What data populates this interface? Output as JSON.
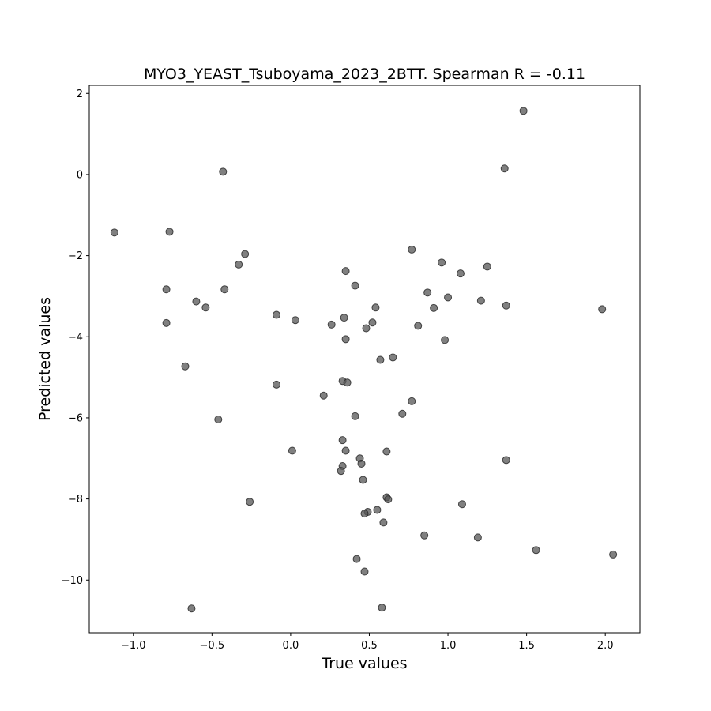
{
  "chart_data": {
    "type": "scatter",
    "title": "MYO3_YEAST_Tsuboyama_2023_2BTT. Spearman R = -0.11",
    "xlabel": "True values",
    "ylabel": "Predicted values",
    "xlim": [
      -1.28,
      2.22
    ],
    "ylim": [
      -11.3,
      2.2
    ],
    "xticks": [
      -1.0,
      -0.5,
      0.0,
      0.5,
      1.0,
      1.5,
      2.0
    ],
    "xtick_labels": [
      "−1.0",
      "−0.5",
      "0.0",
      "0.5",
      "1.0",
      "1.5",
      "2.0"
    ],
    "yticks": [
      2,
      0,
      -2,
      -4,
      -6,
      -8,
      -10
    ],
    "ytick_labels": [
      "2",
      "0",
      "−2",
      "−4",
      "−6",
      "−8",
      "−10"
    ],
    "grid": false,
    "marker_color": "#555555",
    "marker_opacity": 0.75,
    "points": [
      {
        "x": 1.48,
        "y": 1.57
      },
      {
        "x": 1.36,
        "y": 0.15
      },
      {
        "x": -0.43,
        "y": 0.07
      },
      {
        "x": -1.12,
        "y": -1.43
      },
      {
        "x": -0.77,
        "y": -1.41
      },
      {
        "x": 0.77,
        "y": -1.85
      },
      {
        "x": -0.29,
        "y": -1.96
      },
      {
        "x": 0.96,
        "y": -2.17
      },
      {
        "x": -0.33,
        "y": -2.22
      },
      {
        "x": 1.25,
        "y": -2.27
      },
      {
        "x": 0.35,
        "y": -2.38
      },
      {
        "x": 1.08,
        "y": -2.44
      },
      {
        "x": 0.41,
        "y": -2.74
      },
      {
        "x": -0.79,
        "y": -2.83
      },
      {
        "x": -0.42,
        "y": -2.83
      },
      {
        "x": 0.87,
        "y": -2.91
      },
      {
        "x": 1.0,
        "y": -3.03
      },
      {
        "x": -0.6,
        "y": -3.13
      },
      {
        "x": 1.21,
        "y": -3.11
      },
      {
        "x": 1.37,
        "y": -3.23
      },
      {
        "x": -0.54,
        "y": -3.28
      },
      {
        "x": 0.54,
        "y": -3.28
      },
      {
        "x": 0.91,
        "y": -3.29
      },
      {
        "x": 1.98,
        "y": -3.32
      },
      {
        "x": -0.09,
        "y": -3.46
      },
      {
        "x": 0.34,
        "y": -3.53
      },
      {
        "x": 0.03,
        "y": -3.59
      },
      {
        "x": 0.52,
        "y": -3.65
      },
      {
        "x": -0.79,
        "y": -3.66
      },
      {
        "x": 0.26,
        "y": -3.7
      },
      {
        "x": 0.81,
        "y": -3.73
      },
      {
        "x": 0.48,
        "y": -3.79
      },
      {
        "x": 0.35,
        "y": -4.06
      },
      {
        "x": 0.98,
        "y": -4.08
      },
      {
        "x": 0.65,
        "y": -4.51
      },
      {
        "x": 0.57,
        "y": -4.57
      },
      {
        "x": -0.67,
        "y": -4.73
      },
      {
        "x": 0.33,
        "y": -5.09
      },
      {
        "x": 0.36,
        "y": -5.13
      },
      {
        "x": -0.09,
        "y": -5.18
      },
      {
        "x": 0.21,
        "y": -5.45
      },
      {
        "x": 0.77,
        "y": -5.59
      },
      {
        "x": 0.71,
        "y": -5.9
      },
      {
        "x": 0.41,
        "y": -5.96
      },
      {
        "x": -0.46,
        "y": -6.04
      },
      {
        "x": 0.33,
        "y": -6.55
      },
      {
        "x": 0.01,
        "y": -6.81
      },
      {
        "x": 0.35,
        "y": -6.81
      },
      {
        "x": 0.61,
        "y": -6.83
      },
      {
        "x": 0.44,
        "y": -7.0
      },
      {
        "x": 1.37,
        "y": -7.04
      },
      {
        "x": 0.45,
        "y": -7.13
      },
      {
        "x": 0.33,
        "y": -7.19
      },
      {
        "x": 0.32,
        "y": -7.31
      },
      {
        "x": 0.46,
        "y": -7.53
      },
      {
        "x": 0.61,
        "y": -7.96
      },
      {
        "x": 0.62,
        "y": -8.01
      },
      {
        "x": -0.26,
        "y": -8.07
      },
      {
        "x": 1.09,
        "y": -8.13
      },
      {
        "x": 0.55,
        "y": -8.27
      },
      {
        "x": 0.49,
        "y": -8.32
      },
      {
        "x": 0.47,
        "y": -8.36
      },
      {
        "x": 0.59,
        "y": -8.58
      },
      {
        "x": 0.85,
        "y": -8.9
      },
      {
        "x": 1.19,
        "y": -8.95
      },
      {
        "x": 1.56,
        "y": -9.26
      },
      {
        "x": 2.05,
        "y": -9.37
      },
      {
        "x": 0.42,
        "y": -9.48
      },
      {
        "x": 0.47,
        "y": -9.79
      },
      {
        "x": -0.63,
        "y": -10.7
      },
      {
        "x": 0.58,
        "y": -10.68
      }
    ]
  }
}
